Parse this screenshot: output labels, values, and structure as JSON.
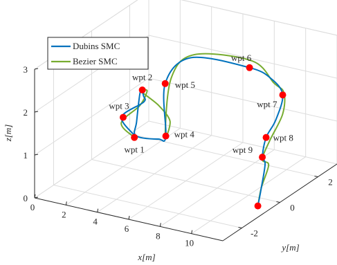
{
  "chart_data": {
    "type": "line",
    "subtype": "3d-trajectory",
    "title": "",
    "xlabel": "x[m]",
    "ylabel": "y[m]",
    "zlabel": "z[m]",
    "xlim": [
      0,
      12
    ],
    "ylim": [
      -3,
      3
    ],
    "zlim": [
      0,
      3
    ],
    "xticks": [
      "0",
      "2",
      "4",
      "6",
      "8",
      "10"
    ],
    "yticks": [
      "-2",
      "0",
      "2"
    ],
    "zticks": [
      "0",
      "1",
      "2",
      "3"
    ],
    "grid": true,
    "legend_position": "top-left",
    "series": [
      {
        "name": "Dubins SMC",
        "color": "#0072BD",
        "points": [
          [
            2.6,
            0.1,
            0.75
          ],
          [
            1.3,
            0.5,
            0.95
          ],
          [
            1.6,
            1.4,
            1.05
          ],
          [
            2.1,
            1.0,
            1.35
          ],
          [
            2.5,
            0.5,
            1.65
          ],
          [
            2.5,
            0.3,
            1.0
          ],
          [
            2.7,
            0.1,
            0.75
          ],
          [
            4.0,
            0.2,
            0.75
          ],
          [
            4.3,
            0.35,
            0.8
          ],
          [
            4.2,
            0.4,
            2.0
          ],
          [
            4.5,
            1.5,
            2.3
          ],
          [
            8.0,
            1.7,
            2.3
          ],
          [
            9.5,
            1.6,
            2.2
          ],
          [
            10.6,
            1.3,
            2.0
          ],
          [
            11.0,
            0.6,
            1.65
          ],
          [
            11.0,
            0.1,
            1.4
          ],
          [
            11.0,
            -0.1,
            1.0
          ],
          [
            11.3,
            -0.2,
            0.9
          ],
          [
            11.3,
            -0.4,
            0.4
          ],
          [
            11.2,
            -0.5,
            0.0
          ]
        ]
      },
      {
        "name": "Bezier SMC",
        "color": "#77AC30",
        "points": [
          [
            2.6,
            0.1,
            0.7
          ],
          [
            1.4,
            0.4,
            0.85
          ],
          [
            1.5,
            1.3,
            1.0
          ],
          [
            2.2,
            1.1,
            1.45
          ],
          [
            2.5,
            0.6,
            1.6
          ],
          [
            3.2,
            0.9,
            1.25
          ],
          [
            3.9,
            0.9,
            0.95
          ],
          [
            4.2,
            0.4,
            0.8
          ],
          [
            4.1,
            0.8,
            2.0
          ],
          [
            4.6,
            1.6,
            2.35
          ],
          [
            7.8,
            2.0,
            2.35
          ],
          [
            9.8,
            1.5,
            2.15
          ],
          [
            10.8,
            1.2,
            2.1
          ],
          [
            11.2,
            0.8,
            1.75
          ],
          [
            11.1,
            0.2,
            1.3
          ],
          [
            11.0,
            -0.1,
            0.95
          ],
          [
            11.4,
            -0.1,
            0.85
          ],
          [
            11.3,
            -0.4,
            0.4
          ],
          [
            11.2,
            -0.5,
            0.0
          ]
        ]
      }
    ],
    "waypoints": [
      {
        "label": "wpt 1",
        "x": 2.6,
        "y": 0.1,
        "z": 0.7
      },
      {
        "label": "wpt 2",
        "x": 2.5,
        "y": 0.6,
        "z": 1.65
      },
      {
        "label": "wpt 3",
        "x": 1.4,
        "y": 0.5,
        "z": 0.95
      },
      {
        "label": "wpt 4",
        "x": 4.3,
        "y": 0.35,
        "z": 0.8
      },
      {
        "label": "wpt 5",
        "x": 4.2,
        "y": 0.4,
        "z": 2.0
      },
      {
        "label": "wpt 6",
        "x": 8.0,
        "y": 1.7,
        "z": 2.3
      },
      {
        "label": "wpt 7",
        "x": 10.6,
        "y": 1.3,
        "z": 2.0
      },
      {
        "label": "wpt 8",
        "x": 11.0,
        "y": 0.1,
        "z": 1.4
      },
      {
        "label": "wpt 9",
        "x": 11.0,
        "y": -0.1,
        "z": 1.0
      },
      {
        "label": "",
        "x": 11.2,
        "y": -0.5,
        "z": 0.0
      }
    ],
    "waypoint_color": "#FF0000"
  }
}
